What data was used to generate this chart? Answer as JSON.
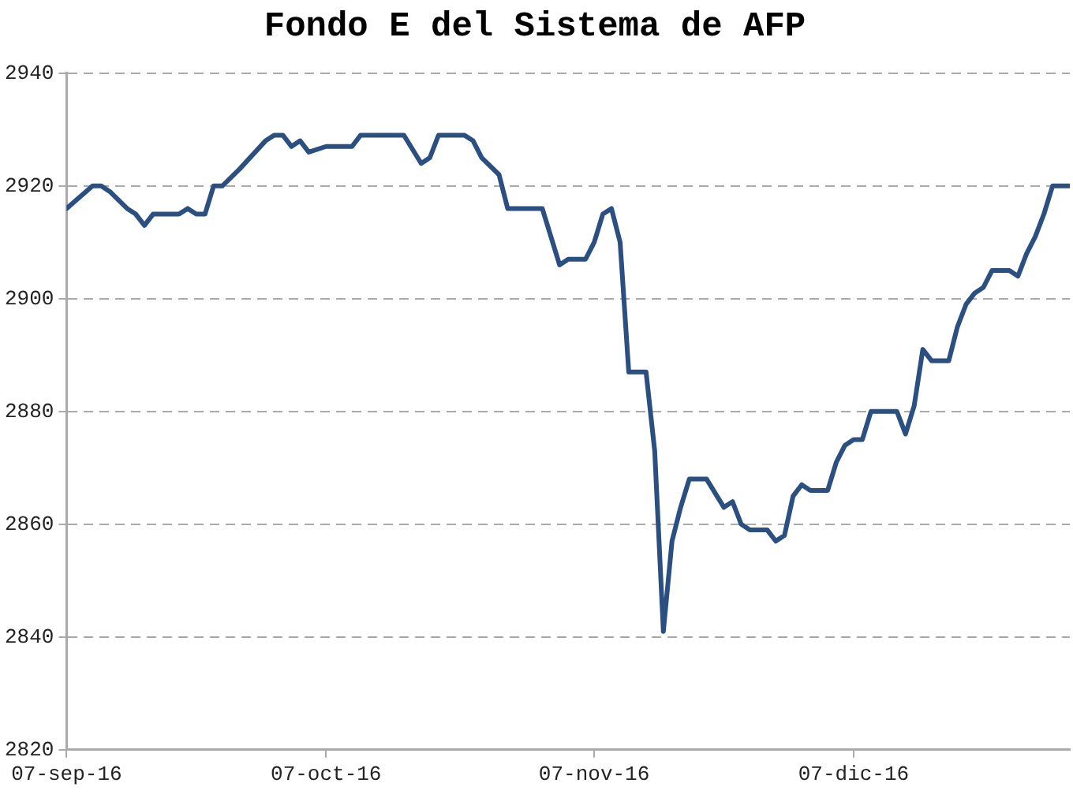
{
  "chart_data": {
    "type": "line",
    "title": "Fondo E del Sistema de AFP",
    "x": [
      "2016-09-07",
      "2016-09-10",
      "2016-09-11",
      "2016-09-12",
      "2016-09-14",
      "2016-09-15",
      "2016-09-16",
      "2016-09-17",
      "2016-09-20",
      "2016-09-21",
      "2016-09-22",
      "2016-09-23",
      "2016-09-24",
      "2016-09-25",
      "2016-09-27",
      "2016-09-30",
      "2016-10-01",
      "2016-10-02",
      "2016-10-03",
      "2016-10-04",
      "2016-10-05",
      "2016-10-07",
      "2016-10-10",
      "2016-10-11",
      "2016-10-14",
      "2016-10-16",
      "2016-10-18",
      "2016-10-19",
      "2016-10-20",
      "2016-10-23",
      "2016-10-24",
      "2016-10-25",
      "2016-10-27",
      "2016-10-28",
      "2016-11-01",
      "2016-11-03",
      "2016-11-04",
      "2016-11-06",
      "2016-11-07",
      "2016-11-08",
      "2016-11-09",
      "2016-11-10",
      "2016-11-11",
      "2016-11-13",
      "2016-11-14",
      "2016-11-15",
      "2016-11-16",
      "2016-11-17",
      "2016-11-18",
      "2016-11-20",
      "2016-11-22",
      "2016-11-23",
      "2016-11-24",
      "2016-11-25",
      "2016-11-27",
      "2016-11-28",
      "2016-11-29",
      "2016-11-30",
      "2016-12-01",
      "2016-12-02",
      "2016-12-04",
      "2016-12-05",
      "2016-12-06",
      "2016-12-07",
      "2016-12-08",
      "2016-12-09",
      "2016-12-12",
      "2016-12-13",
      "2016-12-14",
      "2016-12-15",
      "2016-12-16",
      "2016-12-18",
      "2016-12-19",
      "2016-12-20",
      "2016-12-21",
      "2016-12-22",
      "2016-12-23",
      "2016-12-25",
      "2016-12-26",
      "2016-12-27",
      "2016-12-28",
      "2016-12-29",
      "2016-12-30",
      "2017-01-01"
    ],
    "series": [
      {
        "color": "#2b4f81",
        "values": [
          2916,
          2920,
          2920,
          2919,
          2916,
          2915,
          2913,
          2915,
          2915,
          2916,
          2915,
          2915,
          2920,
          2920,
          2923,
          2928,
          2929,
          2929,
          2927,
          2928,
          2926,
          2927,
          2927,
          2929,
          2929,
          2929,
          2924,
          2925,
          2929,
          2929,
          2928,
          2925,
          2922,
          2916,
          2916,
          2906,
          2907,
          2907,
          2910,
          2915,
          2916,
          2910,
          2887,
          2887,
          2873,
          2841,
          2857,
          2863,
          2868,
          2868,
          2863,
          2864,
          2860,
          2859,
          2859,
          2857,
          2858,
          2865,
          2867,
          2866,
          2866,
          2871,
          2874,
          2875,
          2875,
          2880,
          2880,
          2876,
          2881,
          2891,
          2889,
          2889,
          2895,
          2899,
          2901,
          2902,
          2905,
          2905,
          2904,
          2908,
          2911,
          2915,
          2920,
          2920
        ]
      }
    ],
    "xlim": [
      "2016-09-07",
      "2017-01-01"
    ],
    "xticks": [
      {
        "value": "2016-09-07",
        "label": "07-sep-16"
      },
      {
        "value": "2016-10-07",
        "label": "07-oct-16"
      },
      {
        "value": "2016-11-07",
        "label": "07-nov-16"
      },
      {
        "value": "2016-12-07",
        "label": "07-dic-16"
      }
    ],
    "ylim": [
      2820,
      2940
    ],
    "yticks": [
      2820,
      2840,
      2860,
      2880,
      2900,
      2920,
      2940
    ],
    "grid": "y",
    "legend": false,
    "marker": "none",
    "line_style": "solid"
  }
}
